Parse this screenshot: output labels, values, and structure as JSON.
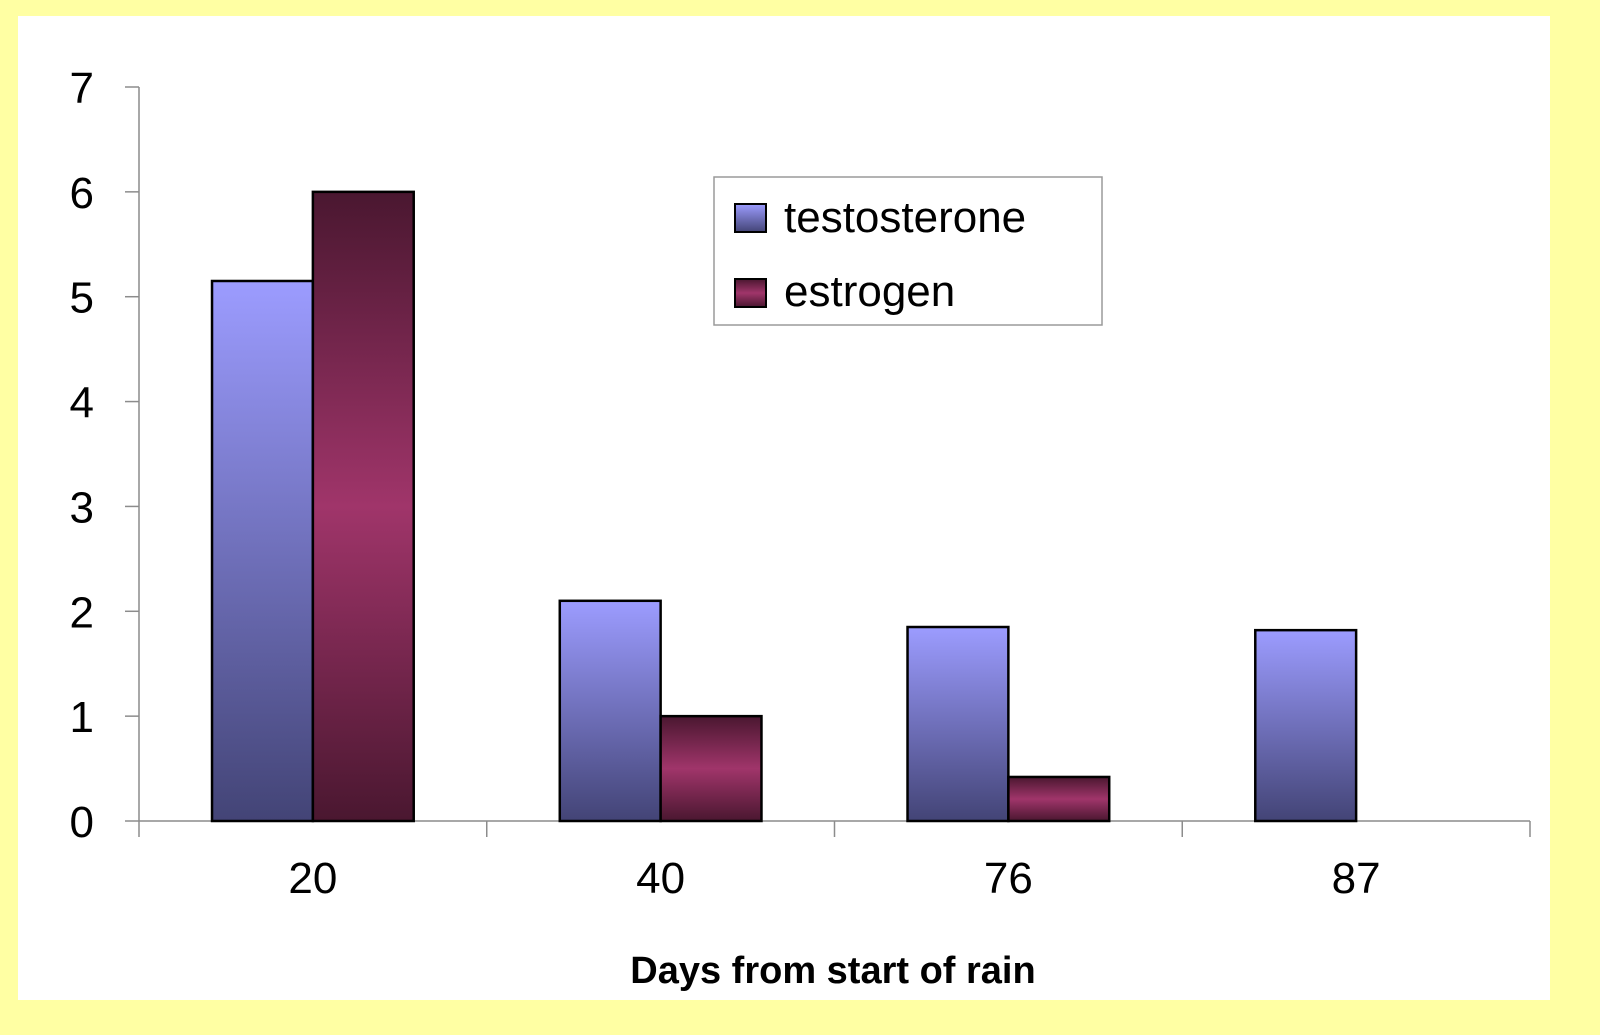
{
  "chart_data": {
    "type": "bar",
    "title": "",
    "xlabel": "Days from start of rain",
    "ylabel": "",
    "categories": [
      "20",
      "40",
      "76",
      "87"
    ],
    "series": [
      {
        "name": "testosterone",
        "values": [
          5.15,
          2.1,
          1.85,
          1.82
        ]
      },
      {
        "name": "estrogen",
        "values": [
          6.0,
          1.0,
          0.42,
          null
        ]
      }
    ],
    "ylim": [
      0,
      7
    ],
    "yticks": [
      0,
      1,
      2,
      3,
      4,
      5,
      6,
      7
    ],
    "grid": false,
    "legend_position": "top-center"
  },
  "colors": {
    "page_background": "#ffffa3",
    "plot_background": "#ffffff",
    "testosterone_light": "#9c9cff",
    "testosterone_dark": "#434476",
    "estrogen_light": "#a0356a",
    "estrogen_dark": "#4a1730"
  }
}
